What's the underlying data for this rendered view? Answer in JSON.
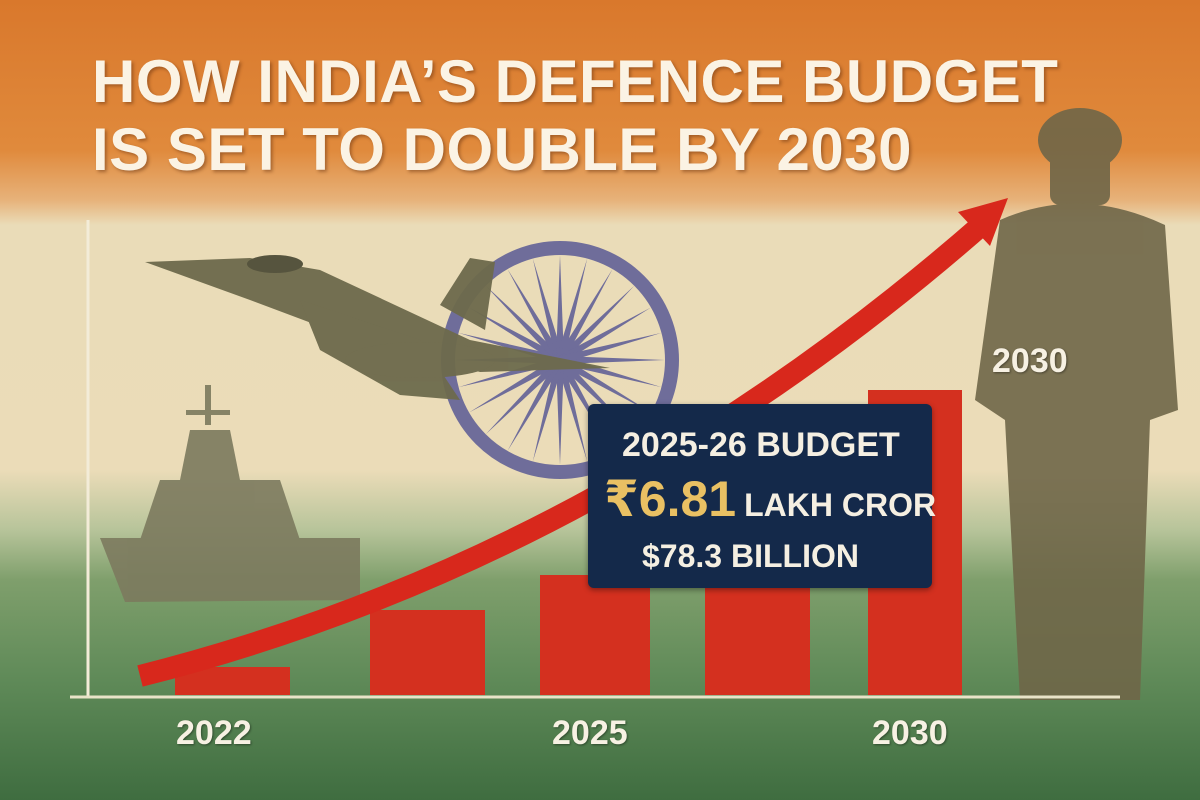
{
  "title": {
    "line1": "HOW INDIA’S DEFENCE BUDGET",
    "line2": "IS SET TO DOUBLE BY 2030"
  },
  "callout": {
    "heading": "2025-26 BUDGET",
    "amount": "₹6.81",
    "unit": "LAKH CROR",
    "usd": "$78.3 BILLION"
  },
  "colors": {
    "bar": "#d4301f",
    "arrow": "#d8281c",
    "callout_bg": "#14294a",
    "amount": "#e9c063"
  },
  "chart_data": {
    "type": "bar",
    "title": "HOW INDIA’S DEFENCE BUDGET IS SET TO DOUBLE BY 2030",
    "x_tick_labels": [
      "2022",
      "2025",
      "2030"
    ],
    "values_relative": [
      28,
      85,
      120,
      150,
      305
    ],
    "trend_arrow": "rising",
    "annotation_2030": "2030",
    "grid": false,
    "legend": "none"
  }
}
